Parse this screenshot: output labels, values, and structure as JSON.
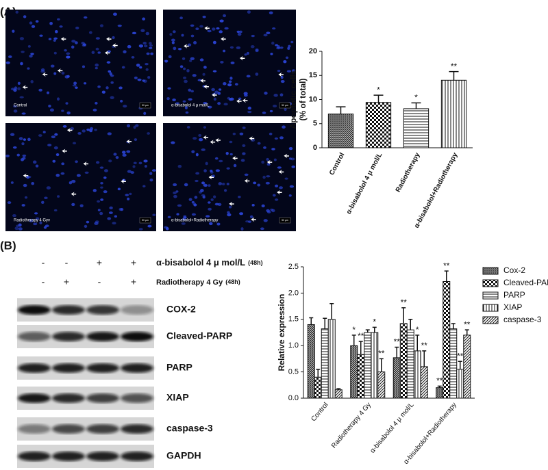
{
  "panel_labels": [
    "(A)",
    "(B)"
  ],
  "micrographs": {
    "labels": [
      "Control",
      "α-bisabolol 4 μ mol/L",
      "Radiotherapy 4 Gyv",
      "α-bisabolol+Radiotherapy"
    ],
    "scale_bar": "50 μm"
  },
  "treatments": [
    {
      "label": "α-bisabolol 4 μ mol/L",
      "duration": "(48h)",
      "signs": [
        "-",
        "-",
        "+",
        "+"
      ]
    },
    {
      "label": "Radiotherapy 4 Gy",
      "duration": "(48h)",
      "signs": [
        "-",
        "+",
        "-",
        "+"
      ]
    }
  ],
  "blot_labels": [
    "COX-2",
    "Cleaved-PARP",
    "PARP",
    "XIAP",
    "caspase-3",
    "GAPDH"
  ],
  "chart_data": [
    {
      "type": "bar",
      "ylabel": [
        "Apoptotic cells",
        "(% of total)"
      ],
      "categories": [
        "Control",
        "α-bisabolol 4 μ mol/L",
        "Radiotherapy",
        "α-bisabolol+Radiotherapy"
      ],
      "values": [
        7.0,
        9.4,
        8.1,
        14.0
      ],
      "errors": [
        1.5,
        1.5,
        1.2,
        1.8
      ],
      "annotations": [
        null,
        "*",
        "*",
        "**"
      ],
      "patterns": [
        "crosshatch",
        "checker",
        "hlines",
        "vlines"
      ],
      "ylim": [
        0,
        20
      ],
      "yticks": [
        0,
        5,
        10,
        15,
        20
      ]
    },
    {
      "type": "bar",
      "ylabel": [
        "Relative expression"
      ],
      "categories": [
        "Control",
        "Radiotherapy 4 Gy",
        "α-bisabolol 4 μ mol/L",
        "α-bisabolol+Radiotherapy"
      ],
      "series": [
        {
          "name": "Cox-2",
          "pattern": "crosshatch",
          "values": [
            1.4,
            1.0,
            0.77,
            0.2
          ],
          "errors": [
            0.13,
            0.2,
            0.2,
            0.03
          ],
          "annotations": [
            null,
            "*",
            "**",
            "**"
          ]
        },
        {
          "name": "Cleaved-PARP",
          "pattern": "checker",
          "values": [
            0.4,
            0.83,
            1.42,
            2.22
          ],
          "errors": [
            0.15,
            0.25,
            0.3,
            0.2
          ],
          "annotations": [
            null,
            "**",
            "**",
            "**"
          ]
        },
        {
          "name": "PARP",
          "pattern": "hlines",
          "values": [
            1.32,
            1.25,
            1.3,
            1.32
          ],
          "errors": [
            0.2,
            0.05,
            0.2,
            0.1
          ],
          "annotations": [
            null,
            null,
            null,
            null
          ]
        },
        {
          "name": "XIAP",
          "pattern": "vlines",
          "values": [
            1.5,
            1.25,
            0.9,
            0.55
          ],
          "errors": [
            0.3,
            0.1,
            0.3,
            0.15
          ],
          "annotations": [
            null,
            "*",
            "*",
            "**"
          ]
        },
        {
          "name": "caspase-3",
          "pattern": "diag",
          "values": [
            0.16,
            0.5,
            0.6,
            1.2
          ],
          "errors": [
            0.02,
            0.25,
            0.3,
            0.1
          ],
          "annotations": [
            null,
            "**",
            "**",
            "**"
          ]
        }
      ],
      "legend": "right",
      "ylim": [
        0,
        2.5
      ],
      "yticks": [
        {
          "value": 0,
          "label": "0.0"
        },
        0.5,
        {
          "value": 1,
          "label": "1.0"
        },
        1.5,
        {
          "value": 2,
          "label": "2.0"
        },
        2.5
      ]
    }
  ]
}
